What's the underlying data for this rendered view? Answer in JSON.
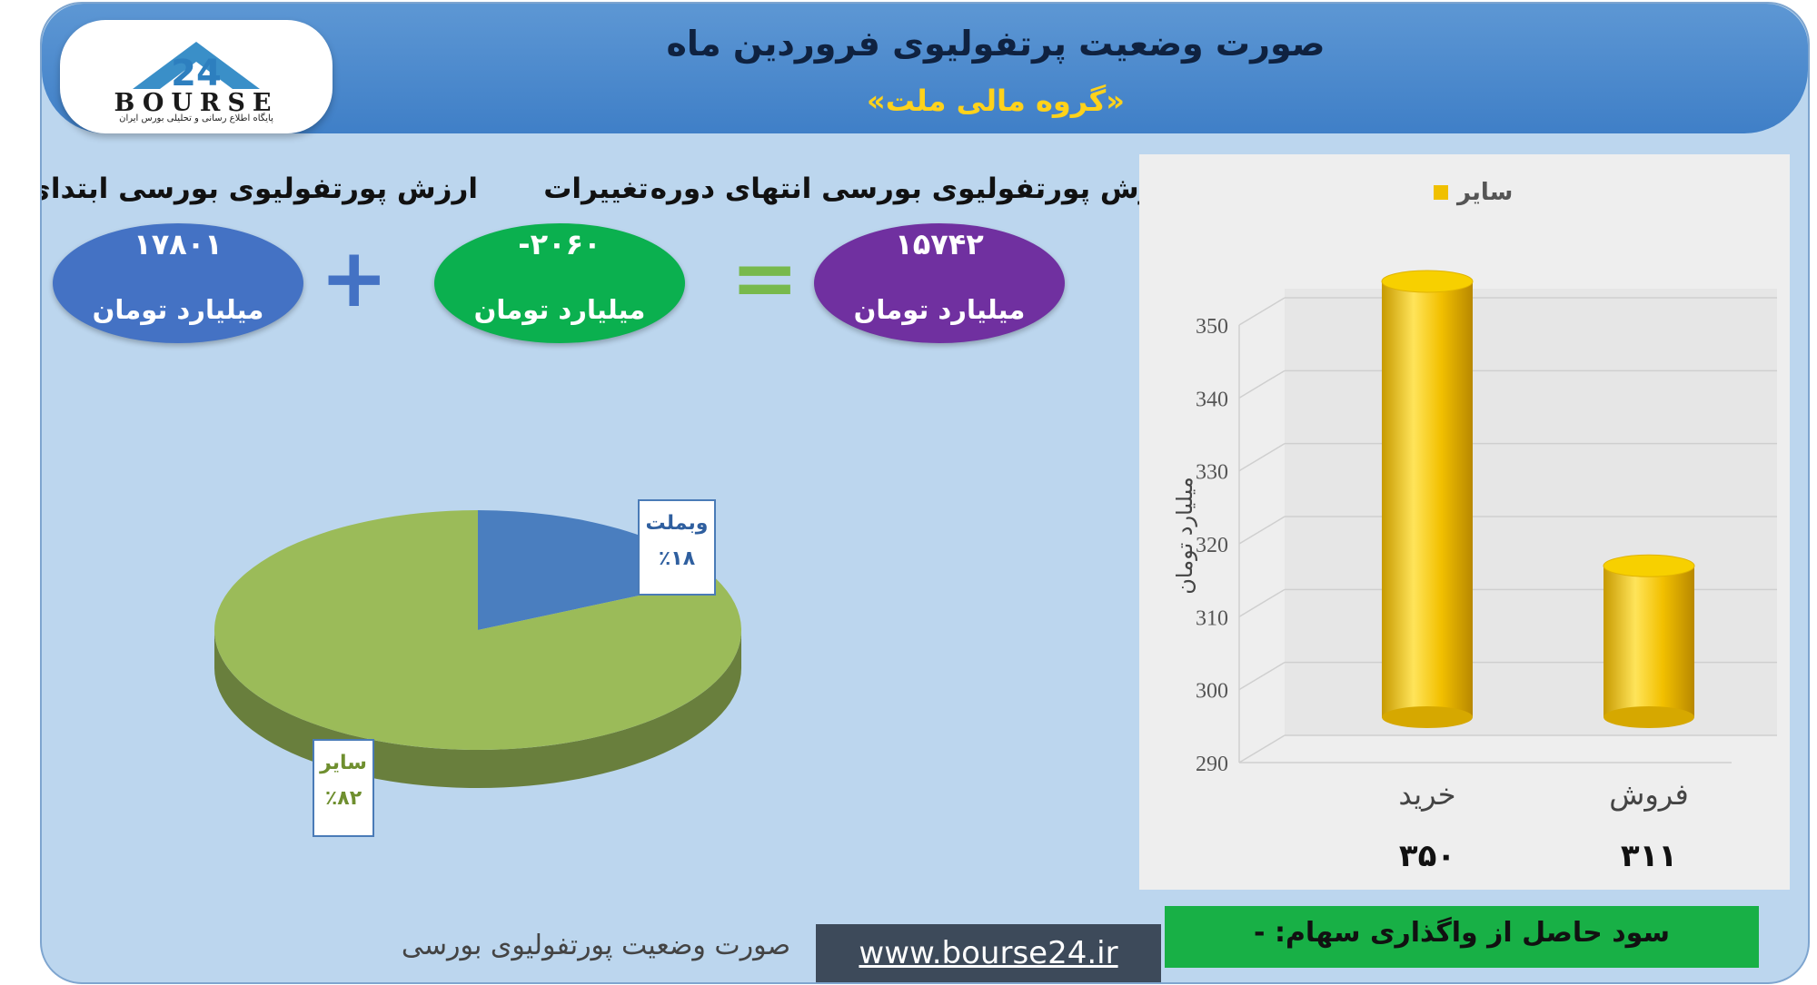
{
  "header": {
    "title": "صورت وضعیت پرتفولیوی فروردین ماه",
    "subtitle": "«گروه مالی ملت»"
  },
  "logo": {
    "name": "BOURSE",
    "subtitle": "پایگاه اطلاع رسانی و تحلیلی بورس ایران"
  },
  "summary": {
    "end_label": "ارزش پورتفولیوی بورسی انتهای دوره",
    "end_value": "۱۵۷۴۲",
    "change_label": "تغییرات",
    "change_value": "-۲۰۶۰",
    "start_label": "ارزش پورتفولیوی بورسی ابتدای دوره",
    "start_value": "۱۷۸۰۱",
    "unit": "میلیارد تومان",
    "equals_sign": "=",
    "plus_sign": "+",
    "colors": {
      "end": "#7030a0",
      "change": "#0bb04f",
      "start": "#4472c4"
    }
  },
  "chart_data": [
    {
      "type": "pie",
      "labels": [
        "وبملت",
        "سایر"
      ],
      "values": [
        18,
        82
      ],
      "value_labels": [
        "٪۱۸",
        "٪۸۲"
      ],
      "colors": [
        "#4a7ebf",
        "#9bbb59"
      ],
      "caption": "صورت وضعیت پورتفولیوی بورسی"
    },
    {
      "type": "bar",
      "categories": [
        "خرید",
        "فروش"
      ],
      "series": [
        {
          "name": "سایر",
          "values": [
            350,
            311
          ]
        }
      ],
      "value_labels": [
        "۳۵۰",
        "۳۱۱"
      ],
      "ylabel": "میلیارد تومان",
      "ylim": [
        290,
        350
      ],
      "yticks": [
        290,
        300,
        310,
        320,
        330,
        340,
        350
      ],
      "grid": true,
      "legend": "top",
      "color": "#f0c000"
    }
  ],
  "footer": {
    "url": "www.bourse24.ir",
    "gain_text": "سود حاصل از واگذاری سهام: -"
  }
}
